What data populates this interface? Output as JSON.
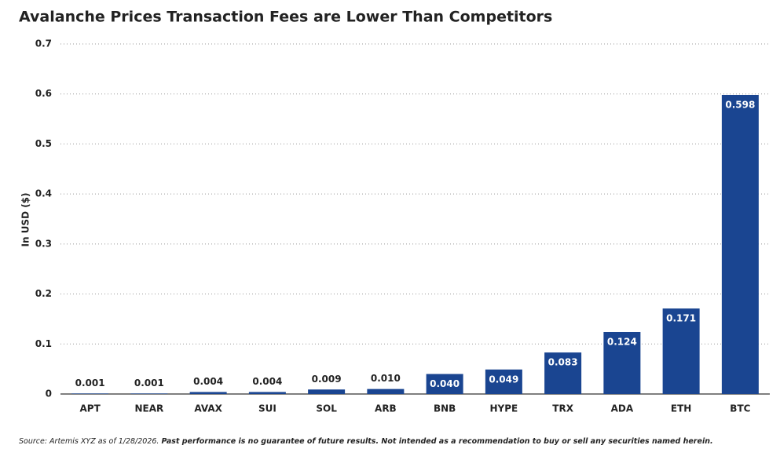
{
  "chart_data": {
    "type": "bar",
    "title": "Avalanche Prices Transaction Fees are Lower Than Competitors",
    "y_label": "In USD ($)",
    "categories": [
      "APT",
      "NEAR",
      "AVAX",
      "SUI",
      "SOL",
      "ARB",
      "BNB",
      "HYPE",
      "TRX",
      "ADA",
      "ETH",
      "BTC"
    ],
    "values": [
      0.001,
      0.001,
      0.004,
      0.004,
      0.009,
      0.01,
      0.04,
      0.049,
      0.083,
      0.124,
      0.171,
      0.598
    ],
    "value_labels": [
      "0.001",
      "0.001",
      "0.004",
      "0.004",
      "0.009",
      "0.010",
      "0.040",
      "0.049",
      "0.083",
      "0.124",
      "0.171",
      "0.598"
    ],
    "color": "#1a4591",
    "ylim": [
      0,
      0.7
    ],
    "yticks": [
      0,
      0.1,
      0.2,
      0.3,
      0.4,
      0.5,
      0.6,
      0.7
    ],
    "grid": true,
    "source": "Source: Artemis XYZ as of 1/28/2026.",
    "disclaimer": "Past performance is no guarantee of future results. Not intended as a recommendation to buy or sell any securities named herein."
  }
}
